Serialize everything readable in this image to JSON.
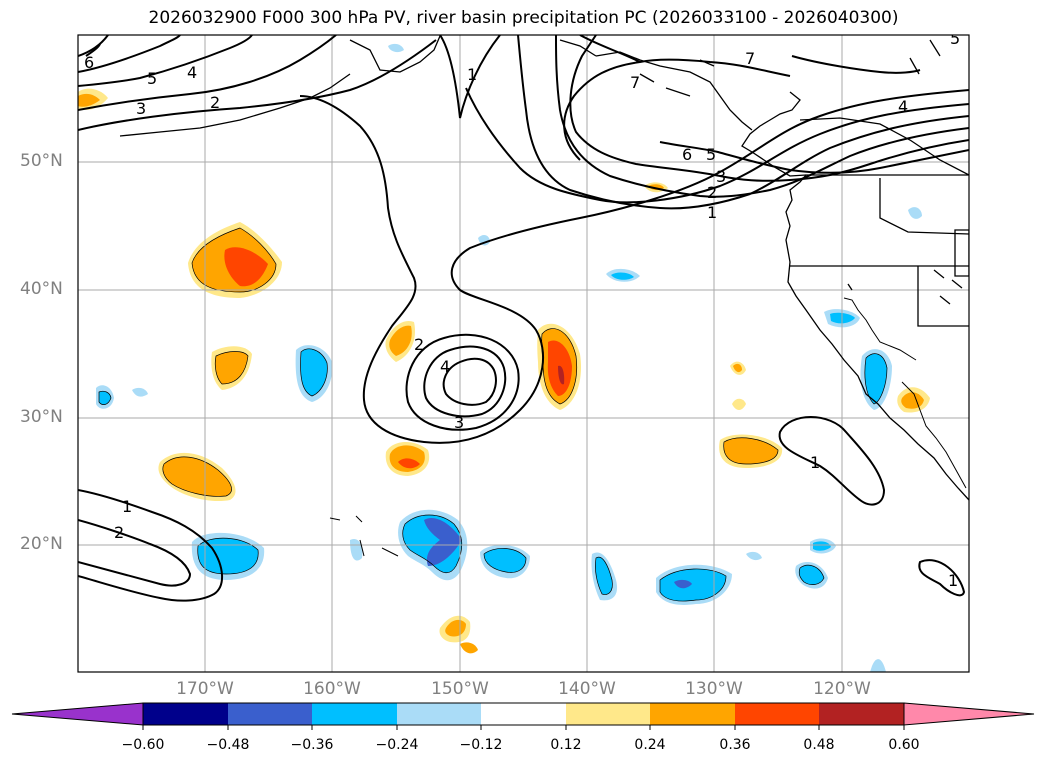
{
  "title": "2026032900 F000 300 hPa PV, river basin precipitation PC (2026033100 - 2026040300)",
  "map": {
    "projection": "Mercator",
    "lon_range": [
      -180,
      -110
    ],
    "lat_range": [
      10,
      60
    ],
    "lat_labels": [
      "50°N",
      "40°N",
      "30°N",
      "20°N"
    ],
    "lon_labels": [
      "170°W",
      "160°W",
      "150°W",
      "140°W",
      "130°W",
      "120°W"
    ],
    "grid_color": "#aaaaaa",
    "coast_color": "#000000",
    "pv_contour_labels": [
      "1",
      "2",
      "3",
      "4",
      "5",
      "6",
      "7"
    ]
  },
  "colorbar": {
    "tick_labels": [
      "−0.60",
      "−0.48",
      "−0.36",
      "−0.24",
      "−0.12",
      "0.12",
      "0.24",
      "0.36",
      "0.48",
      "0.60"
    ],
    "colors": [
      "#9932cc",
      "#00008b",
      "#3a5fcd",
      "#00bfff",
      "#aadcf7",
      "#ffffff",
      "#ffe88a",
      "#ffa500",
      "#ff4500",
      "#b22222",
      "#ff88aa"
    ]
  }
}
